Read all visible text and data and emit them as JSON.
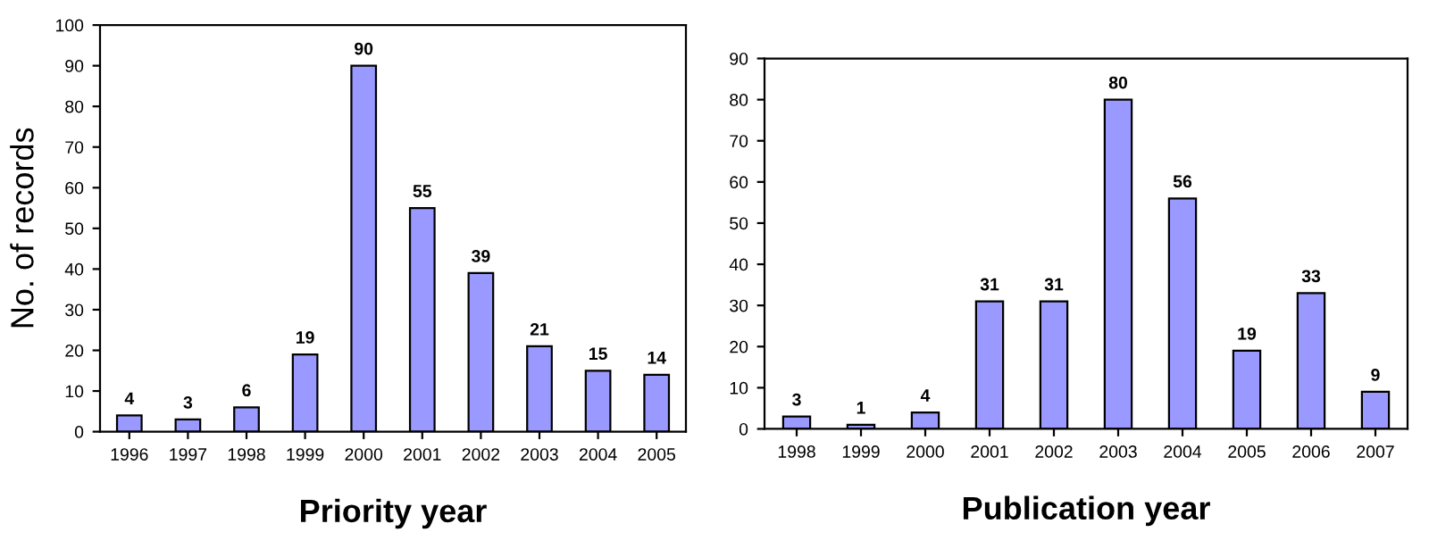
{
  "chart_data": [
    {
      "type": "bar",
      "categories": [
        "1996",
        "1997",
        "1998",
        "1999",
        "2000",
        "2001",
        "2002",
        "2003",
        "2004",
        "2005"
      ],
      "values": [
        4,
        3,
        6,
        19,
        90,
        55,
        39,
        21,
        15,
        14
      ],
      "color": "#9999ff",
      "ylim": [
        0,
        100
      ],
      "yticks": [
        0,
        10,
        20,
        30,
        40,
        50,
        60,
        70,
        80,
        90,
        100
      ],
      "xlabel": "Priority year",
      "ylabel": "No. of records",
      "data_labels": true,
      "grid": false,
      "legend": false
    },
    {
      "type": "bar",
      "categories": [
        "1998",
        "1999",
        "2000",
        "2001",
        "2002",
        "2003",
        "2004",
        "2005",
        "2006",
        "2007"
      ],
      "values": [
        3,
        1,
        4,
        31,
        31,
        80,
        56,
        19,
        33,
        9
      ],
      "color": "#9999ff",
      "ylim": [
        0,
        90
      ],
      "yticks": [
        0,
        10,
        20,
        30,
        40,
        50,
        60,
        70,
        80,
        90
      ],
      "xlabel": "Publication year",
      "data_labels": true,
      "grid": false,
      "legend": false
    }
  ]
}
